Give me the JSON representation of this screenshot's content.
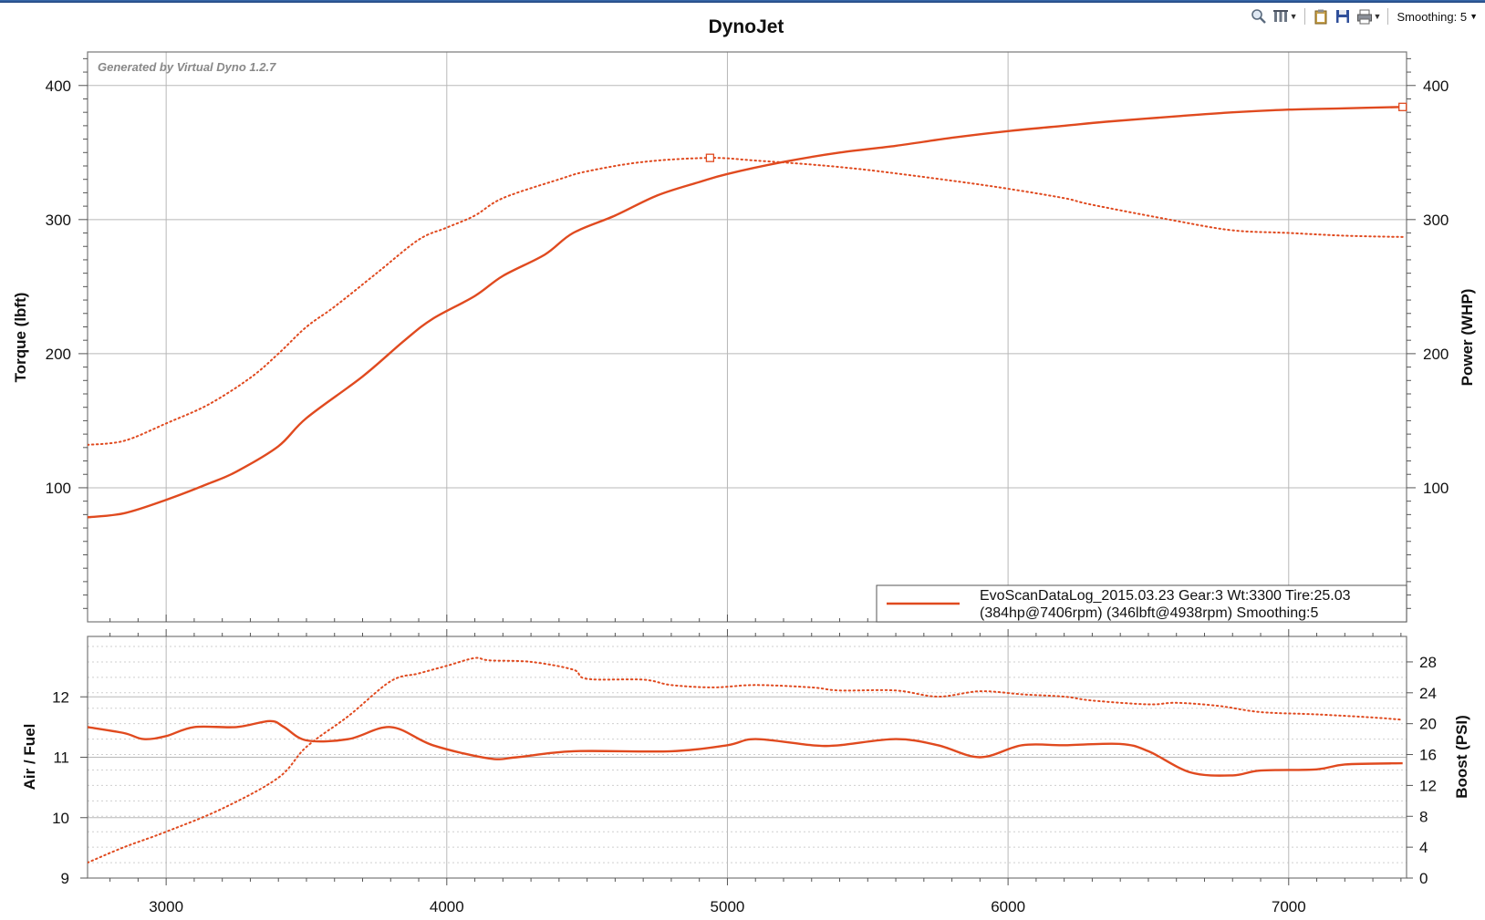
{
  "toolbar": {
    "zoom_icon": "magnifier-icon",
    "axis_icon": "axis-settings-icon",
    "copy_icon": "clipboard-icon",
    "save_icon": "floppy-disk-icon",
    "print_icon": "printer-icon",
    "smoothing_label": "Smoothing: 5"
  },
  "colors": {
    "series": "#e04a1f",
    "grid_major": "#b8b8b8",
    "grid_minor": "#cfcfcf",
    "text": "#111111"
  },
  "chart_data": [
    {
      "type": "line",
      "title": "DynoJet",
      "watermark": "Generated by Virtual Dyno 1.2.7",
      "xlabel": "",
      "ylabel_left": "Torque (lbft)",
      "ylabel_right": "Power (WHP)",
      "xlim": [
        2720,
        7420
      ],
      "ylim": [
        0,
        425
      ],
      "x_ticks": [
        3000,
        4000,
        5000,
        6000,
        7000
      ],
      "y_ticks": [
        100,
        200,
        300,
        400
      ],
      "grid": true,
      "legend_position": "bottom-right",
      "legend": {
        "line1": "EvoScanDataLog_2015.03.23 Gear:3 Wt:3300 Tire:25.03",
        "line2": "(384hp@7406rpm) (346lbft@4938rpm) Smoothing:5"
      },
      "series": [
        {
          "name": "Power (WHP)",
          "style": "solid",
          "marker_at": [
            7406,
            384
          ],
          "points": [
            [
              2720,
              78
            ],
            [
              2850,
              81
            ],
            [
              3000,
              91
            ],
            [
              3150,
              103
            ],
            [
              3250,
              112
            ],
            [
              3400,
              131
            ],
            [
              3500,
              152
            ],
            [
              3700,
              183
            ],
            [
              3850,
              210
            ],
            [
              3950,
              226
            ],
            [
              4100,
              243
            ],
            [
              4200,
              258
            ],
            [
              4350,
              274
            ],
            [
              4450,
              290
            ],
            [
              4600,
              303
            ],
            [
              4750,
              318
            ],
            [
              4900,
              328
            ],
            [
              5000,
              334
            ],
            [
              5200,
              343
            ],
            [
              5400,
              350
            ],
            [
              5600,
              355
            ],
            [
              5800,
              361
            ],
            [
              6000,
              366
            ],
            [
              6200,
              370
            ],
            [
              6350,
              373
            ],
            [
              6600,
              377
            ],
            [
              6800,
              380
            ],
            [
              7000,
              382
            ],
            [
              7200,
              383
            ],
            [
              7406,
              384
            ]
          ]
        },
        {
          "name": "Torque (lbft)",
          "style": "dotted",
          "marker_at": [
            4938,
            346
          ],
          "points": [
            [
              2720,
              132
            ],
            [
              2850,
              135
            ],
            [
              3000,
              148
            ],
            [
              3150,
              162
            ],
            [
              3300,
              182
            ],
            [
              3400,
              200
            ],
            [
              3500,
              220
            ],
            [
              3600,
              235
            ],
            [
              3750,
              260
            ],
            [
              3900,
              285
            ],
            [
              4000,
              294
            ],
            [
              4100,
              303
            ],
            [
              4200,
              316
            ],
            [
              4400,
              330
            ],
            [
              4500,
              336
            ],
            [
              4700,
              343
            ],
            [
              4938,
              346
            ],
            [
              5100,
              344
            ],
            [
              5300,
              341
            ],
            [
              5500,
              337
            ],
            [
              5800,
              329
            ],
            [
              6000,
              323
            ],
            [
              6200,
              316
            ],
            [
              6300,
              311
            ],
            [
              6600,
              299
            ],
            [
              6800,
              292
            ],
            [
              7000,
              290
            ],
            [
              7200,
              288
            ],
            [
              7406,
              287
            ]
          ]
        }
      ]
    },
    {
      "type": "line",
      "ylabel_left": "Air / Fuel",
      "ylabel_right": "Boost (PSI)",
      "xlim": [
        2720,
        7420
      ],
      "ylim_left": [
        9,
        13
      ],
      "ylim_right": [
        0,
        31.3
      ],
      "x_ticks": [
        3000,
        4000,
        5000,
        6000,
        7000
      ],
      "y_ticks_left": [
        9,
        10,
        11,
        12
      ],
      "y_ticks_right": [
        0,
        4,
        8,
        12,
        16,
        20,
        24,
        28
      ],
      "grid": true,
      "series": [
        {
          "name": "Air / Fuel",
          "style": "solid",
          "axis": "left",
          "points": [
            [
              2720,
              11.5
            ],
            [
              2850,
              11.4
            ],
            [
              2920,
              11.3
            ],
            [
              3000,
              11.35
            ],
            [
              3100,
              11.5
            ],
            [
              3250,
              11.5
            ],
            [
              3370,
              11.6
            ],
            [
              3420,
              11.5
            ],
            [
              3500,
              11.28
            ],
            [
              3650,
              11.3
            ],
            [
              3800,
              11.5
            ],
            [
              3950,
              11.2
            ],
            [
              4150,
              10.98
            ],
            [
              4250,
              11.0
            ],
            [
              4450,
              11.1
            ],
            [
              4800,
              11.1
            ],
            [
              5000,
              11.2
            ],
            [
              5100,
              11.3
            ],
            [
              5300,
              11.2
            ],
            [
              5400,
              11.2
            ],
            [
              5600,
              11.3
            ],
            [
              5750,
              11.2
            ],
            [
              5900,
              11.0
            ],
            [
              6050,
              11.2
            ],
            [
              6200,
              11.2
            ],
            [
              6400,
              11.22
            ],
            [
              6500,
              11.1
            ],
            [
              6650,
              10.75
            ],
            [
              6800,
              10.7
            ],
            [
              6900,
              10.78
            ],
            [
              7100,
              10.8
            ],
            [
              7200,
              10.88
            ],
            [
              7406,
              10.9
            ]
          ]
        },
        {
          "name": "Boost (PSI)",
          "style": "dotted",
          "axis": "right",
          "points": [
            [
              2720,
              2
            ],
            [
              2850,
              4
            ],
            [
              3000,
              6
            ],
            [
              3200,
              9
            ],
            [
              3400,
              13
            ],
            [
              3500,
              17
            ],
            [
              3650,
              21
            ],
            [
              3800,
              25.5
            ],
            [
              3900,
              26.5
            ],
            [
              4000,
              27.5
            ],
            [
              4100,
              28.5
            ],
            [
              4150,
              28.2
            ],
            [
              4300,
              28
            ],
            [
              4450,
              27
            ],
            [
              4500,
              25.8
            ],
            [
              4700,
              25.7
            ],
            [
              4800,
              25
            ],
            [
              4950,
              24.7
            ],
            [
              5100,
              25
            ],
            [
              5300,
              24.7
            ],
            [
              5400,
              24.3
            ],
            [
              5600,
              24.3
            ],
            [
              5750,
              23.5
            ],
            [
              5900,
              24.2
            ],
            [
              6050,
              23.8
            ],
            [
              6200,
              23.5
            ],
            [
              6300,
              23
            ],
            [
              6500,
              22.5
            ],
            [
              6600,
              22.7
            ],
            [
              6750,
              22.3
            ],
            [
              6900,
              21.5
            ],
            [
              7100,
              21.2
            ],
            [
              7300,
              20.8
            ],
            [
              7406,
              20.5
            ]
          ]
        }
      ]
    }
  ]
}
